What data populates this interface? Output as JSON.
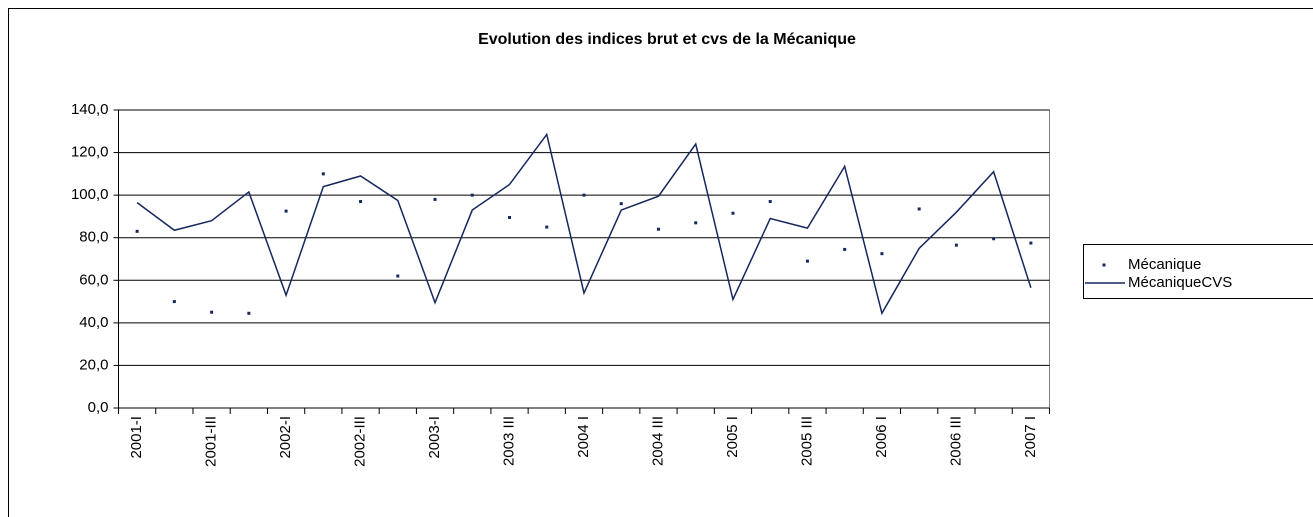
{
  "chart_data": {
    "type": "line",
    "title": "Evolution des indices brut et cvs de la Mécanique",
    "categories": [
      "2001-I",
      null,
      "2001-III",
      null,
      "2002-I",
      null,
      "2002-III",
      null,
      "2003-I",
      null,
      "2003 III",
      null,
      "2004 I",
      null,
      "2004 III",
      null,
      "2005 I",
      null,
      "2005 III",
      null,
      "2006 I",
      null,
      "2006 III",
      null,
      "2007 I"
    ],
    "series": [
      {
        "name": "Mécanique",
        "color": "#17275e",
        "style": "markers",
        "values": [
          83,
          50,
          45,
          44.5,
          92.5,
          110,
          97,
          62,
          98,
          100,
          89.5,
          85,
          100,
          96,
          84,
          87,
          91.5,
          97,
          69,
          74.5,
          72.5,
          93.5,
          76.5,
          79.5,
          77.5
        ]
      },
      {
        "name": "MécaniqueCVS",
        "color": "#17275e",
        "style": "line",
        "values": [
          96.5,
          83.5,
          88,
          101.5,
          53,
          104,
          109,
          97.5,
          49.5,
          93,
          105,
          128.5,
          54,
          93,
          99.5,
          124,
          51,
          89,
          84.5,
          113.5,
          44.5,
          75,
          92,
          111,
          56.5
        ]
      }
    ],
    "ylim": [
      0,
      140
    ],
    "yticks": [
      {
        "value": 0,
        "label": "0,0"
      },
      {
        "value": 20,
        "label": "20,0"
      },
      {
        "value": 40,
        "label": "40,0"
      },
      {
        "value": 60,
        "label": "60,0"
      },
      {
        "value": 80,
        "label": "80,0"
      },
      {
        "value": 100,
        "label": "100,0"
      },
      {
        "value": 120,
        "label": "120,0"
      },
      {
        "value": 140,
        "label": "140,0"
      }
    ],
    "grid": true,
    "legend": "right"
  }
}
